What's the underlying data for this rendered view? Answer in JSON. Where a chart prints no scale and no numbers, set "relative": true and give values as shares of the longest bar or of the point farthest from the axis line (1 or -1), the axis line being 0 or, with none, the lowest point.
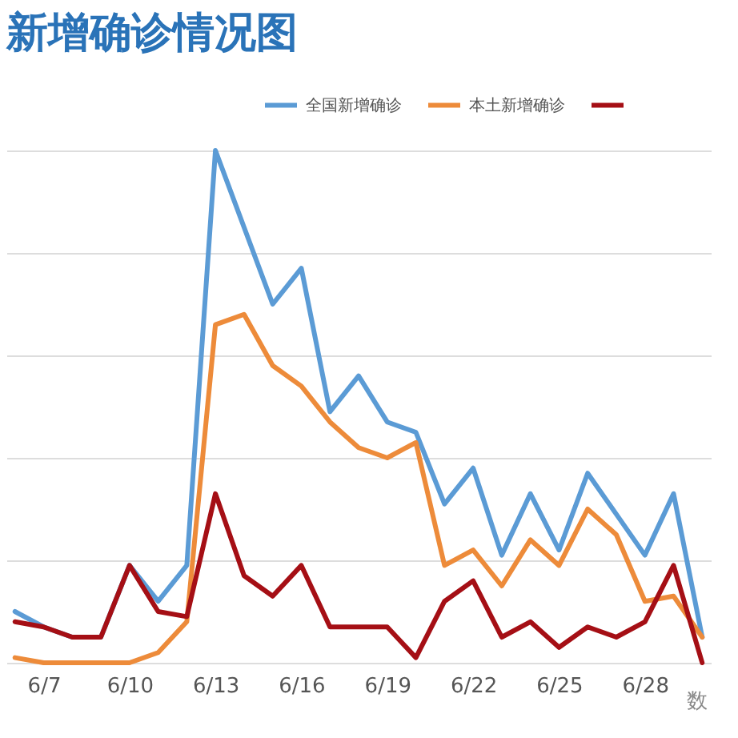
{
  "chart_data": {
    "type": "line",
    "title": "新增确诊情况图",
    "relative": true,
    "grid": "y",
    "legend": "top right",
    "categories": [
      null,
      "6/7",
      null,
      null,
      "6/10",
      null,
      null,
      "6/13",
      null,
      null,
      "6/16",
      null,
      null,
      "6/19",
      null,
      null,
      "6/22",
      null,
      null,
      "6/25",
      null,
      null,
      "6/28",
      null,
      null
    ],
    "series": [
      {
        "name": "全国新增确诊",
        "color": "#5b9bd5",
        "values": [
          0.1,
          0.07,
          0.05,
          0.05,
          0.19,
          0.12,
          0.19,
          1,
          0.85,
          0.7,
          0.77,
          0.49,
          0.56,
          0.47,
          0.45,
          0.31,
          0.38,
          0.21,
          0.33,
          0.22,
          0.37,
          0.29,
          0.21,
          0.33,
          0.05
        ]
      },
      {
        "name": "本土新增确诊",
        "color": "#ed8b3a",
        "values": [
          0.01,
          0,
          0,
          0,
          0,
          0.02,
          0.08,
          0.66,
          0.68,
          0.58,
          0.54,
          0.47,
          0.42,
          0.4,
          0.43,
          0.19,
          0.22,
          0.15,
          0.24,
          0.19,
          0.3,
          0.25,
          0.12,
          0.13,
          0.05
        ]
      },
      {
        "color": "#a50f15",
        "values": [
          0.08,
          0.07,
          0.05,
          0.05,
          0.19,
          0.1,
          0.09,
          0.33,
          0.17,
          0.13,
          0.19,
          0.07,
          0.07,
          0.07,
          0.01,
          0.12,
          0.16,
          0.05,
          0.08,
          0.03,
          0.07,
          0.05,
          0.08,
          0.19,
          0
        ]
      }
    ],
    "annotations": [
      "数"
    ]
  }
}
